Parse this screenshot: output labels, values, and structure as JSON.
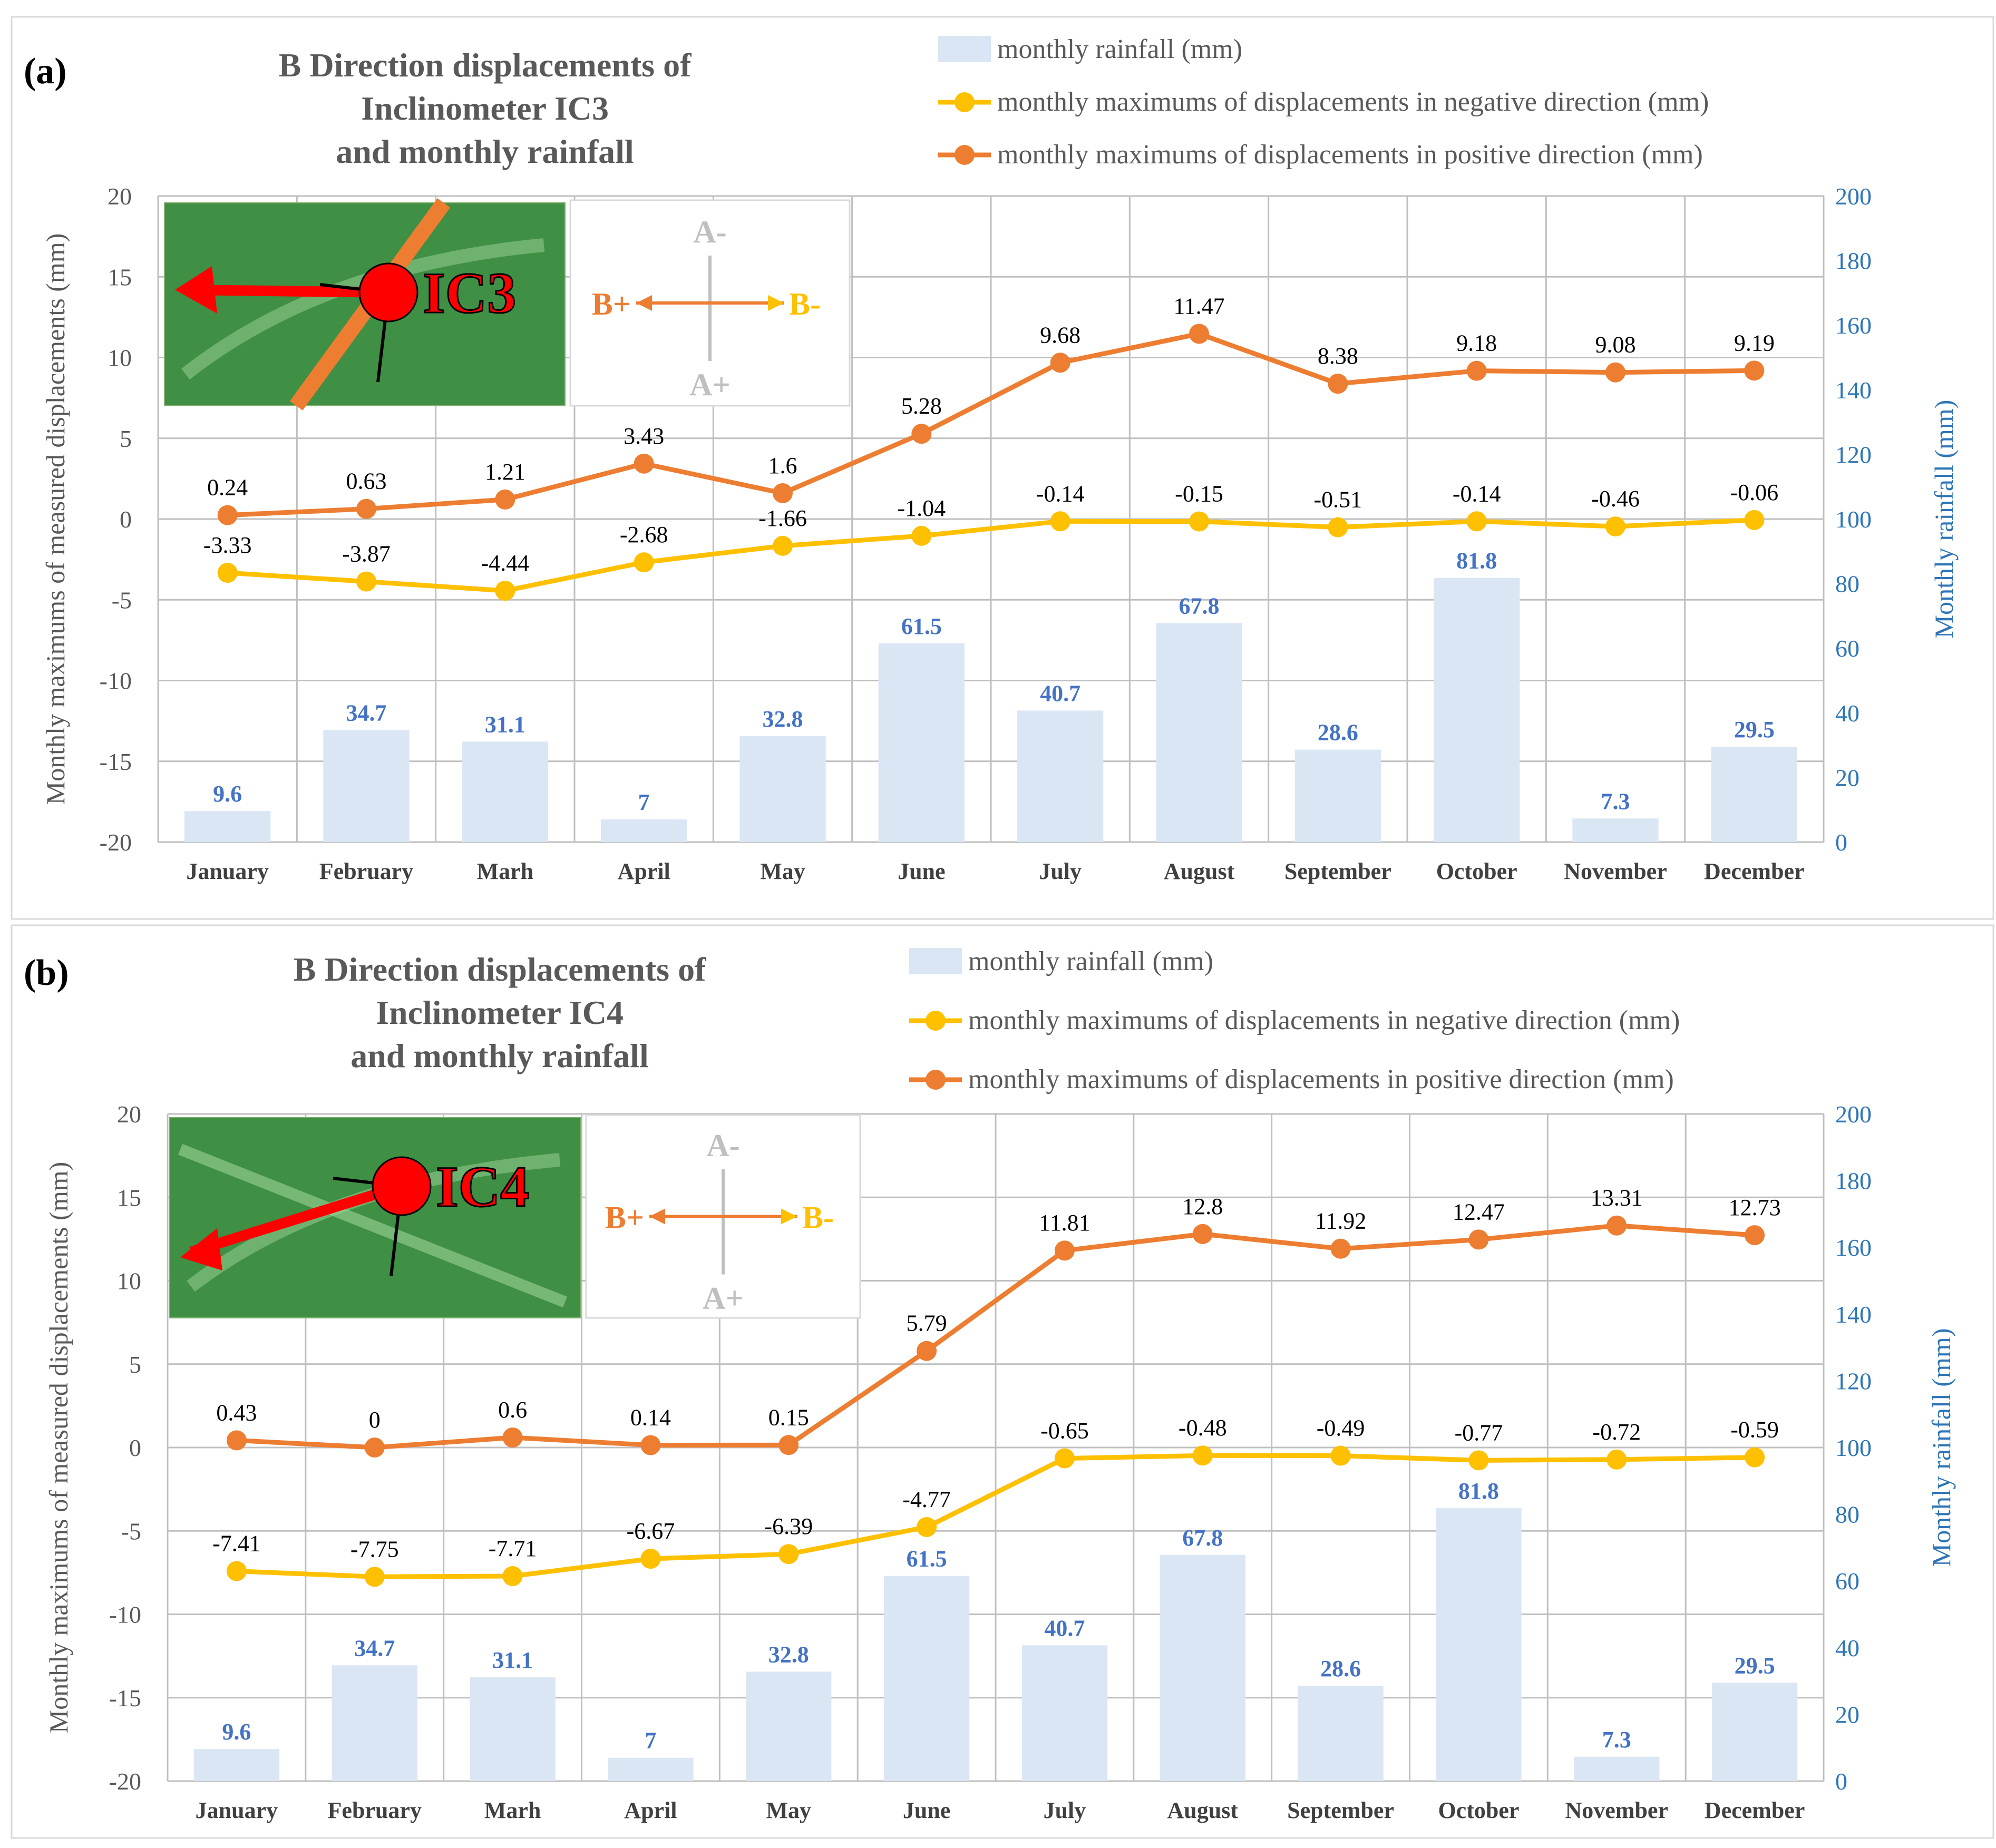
{
  "colors": {
    "bar": "#dae6f3",
    "bar_label": "#4472c4",
    "negative_line": "#ffc000",
    "positive_line": "#ed7d31",
    "right_axis_text": "#2e75b6",
    "axis_text": "#595959",
    "grid": "#bfbfbf",
    "title_text": "#595959",
    "arrow_a": "#bfbfbf",
    "satellite_green": "#3f8f45",
    "marker_red": "#ff0000"
  },
  "chart_data": [
    {
      "type": "bar+line",
      "panel_label": "(a)",
      "title_lines": [
        "B Direction displacements of",
        "Inclinometer IC3",
        "and monthly rainfall"
      ],
      "categories": [
        "January",
        "February",
        "Marh",
        "April",
        "May",
        "June",
        "July",
        "August",
        "September",
        "October",
        "November",
        "December"
      ],
      "ylabel": "Monthly maximums of  measured displacements (mm)",
      "y2label": "Monthly rainfall (mm)",
      "ylim": [
        -20,
        20
      ],
      "yticks": [
        20,
        15,
        10,
        5,
        0,
        -5,
        -10,
        -15,
        -20
      ],
      "y2lim": [
        0,
        200
      ],
      "y2ticks": [
        200,
        180,
        160,
        140,
        120,
        100,
        80,
        60,
        40,
        20,
        0
      ],
      "grid": true,
      "legend_position": "top-right",
      "series": [
        {
          "name": "monthly rainfall (mm)",
          "kind": "bar",
          "axis": "right",
          "values": [
            9.6,
            34.7,
            31.1,
            7,
            32.8,
            61.5,
            40.7,
            67.8,
            28.6,
            81.8,
            7.3,
            29.5
          ],
          "labels": [
            "9.6",
            "34.7",
            "31.1",
            "7",
            "32.8",
            "61.5",
            "40.7",
            "67.8",
            "28.6",
            "81.8",
            "7.3",
            "29.5"
          ]
        },
        {
          "name": "monthly maximums of displacements in negative direction (mm)",
          "kind": "line",
          "axis": "left",
          "values": [
            -3.33,
            -3.87,
            -4.44,
            -2.68,
            -1.66,
            -1.04,
            -0.14,
            -0.15,
            -0.51,
            -0.14,
            -0.46,
            -0.06
          ],
          "labels": [
            "-3.33",
            "-3.87",
            "-4.44",
            "-2.68",
            "-1.66",
            "-1.04",
            "-0.14",
            "-0.15",
            "-0.51",
            "-0.14",
            "-0.46",
            "-0.06"
          ]
        },
        {
          "name": "monthly maximums of displacements in positive direction (mm)",
          "kind": "line",
          "axis": "left",
          "values": [
            0.24,
            0.63,
            1.21,
            3.43,
            1.6,
            5.28,
            9.68,
            11.47,
            8.38,
            9.18,
            9.08,
            9.19
          ],
          "labels": [
            "0.24",
            "0.63",
            "1.21",
            "3.43",
            "1.6",
            "5.28",
            "9.68",
            "11.47",
            "8.38",
            "9.18",
            "9.08",
            "9.19"
          ]
        }
      ],
      "inset": {
        "marker_label": "IC3",
        "direction_labels": {
          "a_minus": "A-",
          "a_plus": "A+",
          "b_plus": "B+",
          "b_minus": "B-"
        }
      }
    },
    {
      "type": "bar+line",
      "panel_label": "(b)",
      "title_lines": [
        "B Direction displacements of",
        "Inclinometer IC4",
        "and monthly rainfall"
      ],
      "categories": [
        "January",
        "February",
        "Marh",
        "April",
        "May",
        "June",
        "July",
        "August",
        "September",
        "October",
        "November",
        "December"
      ],
      "ylabel": "Monthly maximums of measured displacements (mm)",
      "y2label": "Monthly rainfall (mm)",
      "ylim": [
        -20,
        20
      ],
      "yticks": [
        20,
        15,
        10,
        5,
        0,
        -5,
        -10,
        -15,
        -20
      ],
      "y2lim": [
        0,
        200
      ],
      "y2ticks": [
        200,
        180,
        160,
        140,
        120,
        100,
        80,
        60,
        40,
        20,
        0
      ],
      "grid": true,
      "legend_position": "top-right",
      "series": [
        {
          "name": "monthly rainfall (mm)",
          "kind": "bar",
          "axis": "right",
          "values": [
            9.6,
            34.7,
            31.1,
            7,
            32.8,
            61.5,
            40.7,
            67.8,
            28.6,
            81.8,
            7.3,
            29.5
          ],
          "labels": [
            "9.6",
            "34.7",
            "31.1",
            "7",
            "32.8",
            "61.5",
            "40.7",
            "67.8",
            "28.6",
            "81.8",
            "7.3",
            "29.5"
          ]
        },
        {
          "name": "monthly maximums of displacements in negative direction (mm)",
          "kind": "line",
          "axis": "left",
          "values": [
            -7.41,
            -7.75,
            -7.71,
            -6.67,
            -6.39,
            -4.77,
            -0.65,
            -0.48,
            -0.49,
            -0.77,
            -0.72,
            -0.59
          ],
          "labels": [
            "-7.41",
            "-7.75",
            "-7.71",
            "-6.67",
            "-6.39",
            "-4.77",
            "-0.65",
            "-0.48",
            "-0.49",
            "-0.77",
            "-0.72",
            "-0.59"
          ]
        },
        {
          "name": "monthly maximums of displacements in positive direction (mm)",
          "kind": "line",
          "axis": "left",
          "values": [
            0.43,
            0,
            0.6,
            0.14,
            0.15,
            5.79,
            11.81,
            12.8,
            11.92,
            12.47,
            13.31,
            12.73
          ],
          "labels": [
            "0.43",
            "0",
            "0.6",
            "0.14",
            "0.15",
            "5.79",
            "11.81",
            "12.8",
            "11.92",
            "12.47",
            "13.31",
            "12.73"
          ]
        }
      ],
      "inset": {
        "marker_label": "IC4",
        "direction_labels": {
          "a_minus": "A-",
          "a_plus": "A+",
          "b_plus": "B+",
          "b_minus": "B-"
        }
      }
    }
  ]
}
